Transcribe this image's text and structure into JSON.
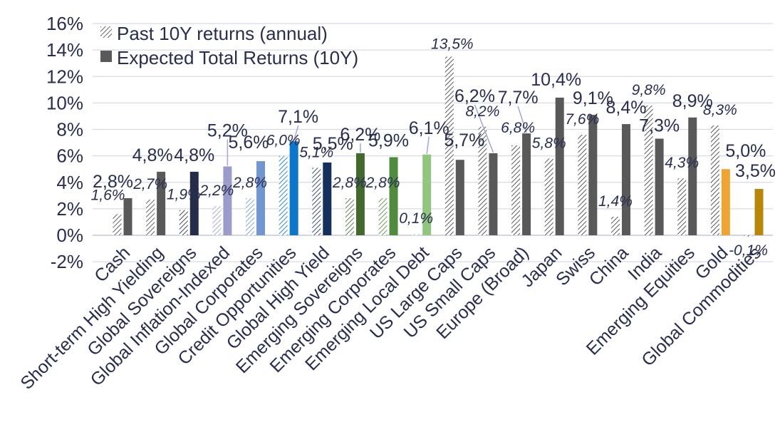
{
  "legend": [
    {
      "label": "Past 10Y returns (annual)",
      "swatch": "hatched"
    },
    {
      "label": "Expected Total Returns (10Y)",
      "swatch": "solid"
    }
  ],
  "y_axis": {
    "ticks": [
      "16%",
      "14%",
      "12%",
      "10%",
      "8%",
      "6%",
      "4%",
      "2%",
      "0%",
      "-2%"
    ],
    "tick_values": [
      16,
      14,
      12,
      10,
      8,
      6,
      4,
      2,
      0,
      -2
    ]
  },
  "colors": {
    "text": "#272E4F",
    "gridline": "#D8DAE6",
    "zero_axis": "#C3C7DB",
    "leader_line": "#A6ABD6",
    "background": "#FFFFFF",
    "legend_solid_swatch": "#595959"
  },
  "chart_data": {
    "type": "bar",
    "title": "",
    "xlabel": "",
    "ylabel": "",
    "ylim": [
      -2,
      16
    ],
    "grid": true,
    "legend_position": "top-left",
    "categories": [
      "Cash",
      "Short-term High Yielding",
      "Global Sovereigns",
      "Global Inflation-Indexed",
      "Global Corporates",
      "Credit Opportunities",
      "Global High Yield",
      "Emerging Sovereigns",
      "Emerging Corporates",
      "Emerging Local Debt",
      "US Large Caps",
      "US Small Caps",
      "Europe (Broad)",
      "Japan",
      "Swiss",
      "China",
      "India",
      "Emerging Equities",
      "Gold",
      "Global Commodities"
    ],
    "series": [
      {
        "name": "Past 10Y returns (annual)",
        "style": "hatched",
        "values": [
          1.6,
          2.7,
          1.9,
          2.2,
          2.8,
          6.0,
          5.1,
          2.8,
          2.8,
          0.1,
          13.5,
          8.2,
          6.8,
          5.8,
          7.6,
          1.4,
          9.8,
          4.3,
          8.3,
          -0.1
        ],
        "labels": [
          "1,6%",
          "2,7%",
          "1,9%",
          "2,2%",
          "2,8%",
          "6,0%",
          "5,1%",
          "2,8%",
          "2,8%",
          "0,1%",
          "13,5%",
          "8,2%",
          "6,8%",
          "5,8%",
          "7,6%",
          "1,4%",
          "9,8%",
          "4,3%",
          "8,3%",
          "-0,1%"
        ]
      },
      {
        "name": "Expected Total Returns (10Y)",
        "style": "solid",
        "values": [
          2.8,
          4.8,
          4.8,
          5.2,
          5.6,
          7.1,
          5.5,
          6.2,
          5.9,
          6.1,
          5.7,
          6.2,
          7.7,
          10.4,
          9.1,
          8.4,
          7.3,
          8.9,
          5.0,
          3.5
        ],
        "labels": [
          "2,8%",
          "4,8%",
          "4,8%",
          "5,2%",
          "5,6%",
          "7,1%",
          "5,5%",
          "6,2%",
          "5,9%",
          "6,1%",
          "5,7%",
          "6,2%",
          "7,7%",
          "10,4%",
          "9,1%",
          "8,4%",
          "7,3%",
          "8,9%",
          "5,0%",
          "3,5%"
        ]
      }
    ],
    "category_colors_solid": [
      "#595959",
      "#595959",
      "#262D49",
      "#9C9CCC",
      "#7296CF",
      "#0C76C8",
      "#16305E",
      "#44692F",
      "#518B3F",
      "#92C57E",
      "#595959",
      "#595959",
      "#595959",
      "#595959",
      "#595959",
      "#595959",
      "#595959",
      "#595959",
      "#F0A431",
      "#B8860B"
    ],
    "category_colors_hatch": [
      "#4B4B4B",
      "#4B4B4B",
      "#262D49",
      "#9C9CCC",
      "#7296CF",
      "#0C76C8",
      "#16305E",
      "#44692F",
      "#518B3F",
      "#92C57E",
      "#3F3F3F",
      "#3F3F3F",
      "#3F3F3F",
      "#3F3F3F",
      "#3F3F3F",
      "#3F3F3F",
      "#3F3F3F",
      "#3F3F3F",
      "#3A3A3A",
      "#3A3A3A"
    ],
    "label_offsets": {
      "past": {
        "0": {
          "dx": -13,
          "dy": -5
        },
        "10": {
          "dx": 4,
          "dy": 4
        },
        "12": {
          "dx": 3,
          "dy": -3
        },
        "18": {
          "dx": 7,
          "dy": 0
        }
      },
      "expected": {
        "0": {
          "dx": -21,
          "dy": 0
        },
        "1": {
          "dx": -12,
          "dy": 0
        },
        "3": {
          "dx": 0,
          "dy": -27
        },
        "4": {
          "dx": -17,
          "dy": -3
        },
        "5": {
          "dx": 6,
          "dy": -11
        },
        "6": {
          "dx": 8,
          "dy": -3
        },
        "7": {
          "dx": 0,
          "dy": -3
        },
        "8": {
          "dx": -7,
          "dy": 0
        },
        "9": {
          "dx": 3,
          "dy": -14
        },
        "10": {
          "dx": 6,
          "dy": -4
        },
        "11": {
          "dx": -26,
          "dy": -57
        },
        "12": {
          "dx": -12,
          "dy": -27
        },
        "13": {
          "dx": -5,
          "dy": -2
        },
        "16": {
          "dx": 0,
          "dy": 5
        },
        "18": {
          "dx": 28,
          "dy": -2
        },
        "19": {
          "dx": -5,
          "dy": -2
        }
      }
    },
    "leader_indices": [
      3,
      5,
      7,
      9,
      11,
      12
    ]
  }
}
